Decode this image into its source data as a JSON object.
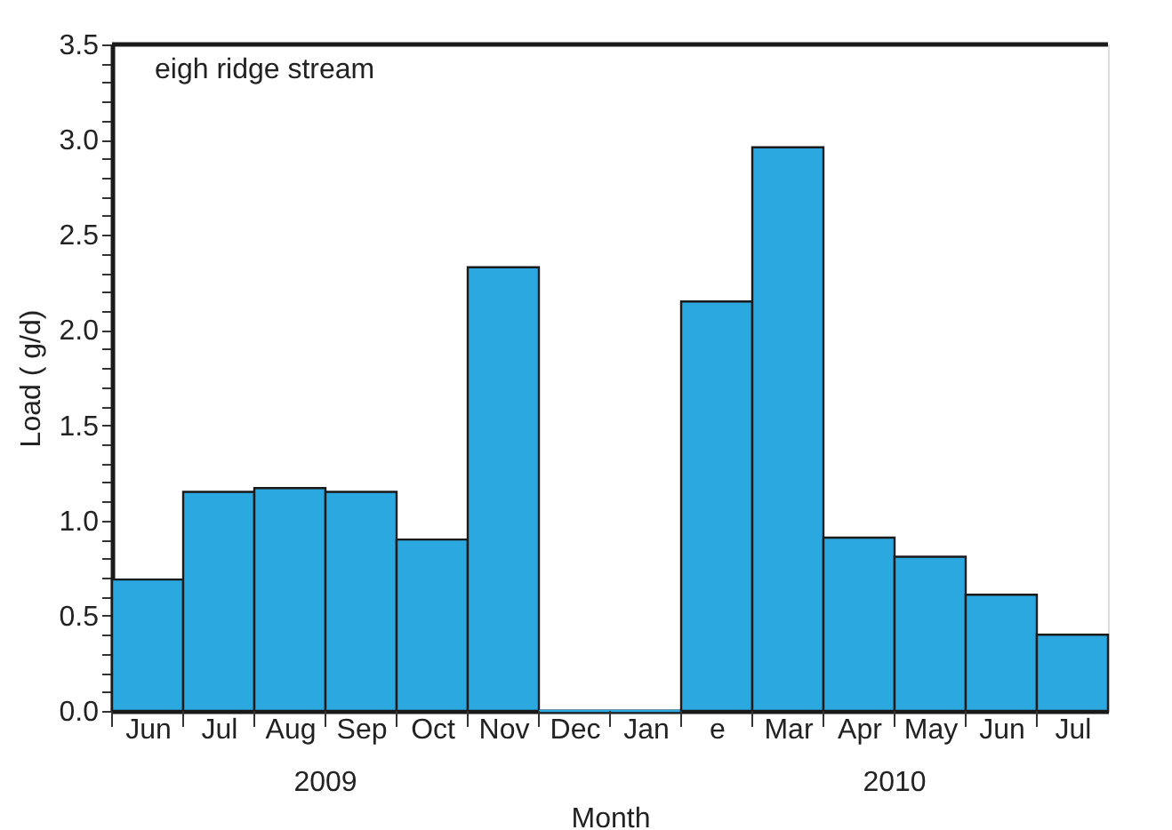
{
  "chart_data": {
    "type": "bar",
    "title": "eigh  ridge stream",
    "xlabel": "Month",
    "ylabel": "Load (  g/d)",
    "categories": [
      "Jun",
      "Jul",
      "Aug",
      "Sep",
      "Oct",
      "Nov",
      "Dec",
      "Jan",
      "e",
      "Mar",
      "Apr",
      "May",
      "Jun",
      "Jul"
    ],
    "values": [
      0.69,
      1.15,
      1.17,
      1.15,
      0.9,
      2.33,
      0,
      0,
      2.15,
      2.96,
      0.91,
      0.81,
      0.61,
      0.4
    ],
    "color": "#2ca8e0",
    "ylim": [
      0,
      3.5
    ],
    "yticks": [
      {
        "value": 0.0,
        "label": "0.0"
      },
      {
        "value": 0.1,
        "label": null
      },
      {
        "value": 0.2,
        "label": null
      },
      {
        "value": 0.3,
        "label": null
      },
      {
        "value": 0.4,
        "label": null
      },
      {
        "value": 0.5,
        "label": "0.5"
      },
      {
        "value": 0.6,
        "label": null
      },
      {
        "value": 0.7,
        "label": null
      },
      {
        "value": 0.8,
        "label": null
      },
      {
        "value": 0.9,
        "label": null
      },
      {
        "value": 1.0,
        "label": "1.0"
      },
      {
        "value": 1.1,
        "label": null
      },
      {
        "value": 1.2,
        "label": null
      },
      {
        "value": 1.3,
        "label": null
      },
      {
        "value": 1.4,
        "label": null
      },
      {
        "value": 1.5,
        "label": "1.5"
      },
      {
        "value": 1.6,
        "label": null
      },
      {
        "value": 1.7,
        "label": null
      },
      {
        "value": 1.8,
        "label": null
      },
      {
        "value": 1.9,
        "label": null
      },
      {
        "value": 2.0,
        "label": "2.0"
      },
      {
        "value": 2.1,
        "label": null
      },
      {
        "value": 2.2,
        "label": null
      },
      {
        "value": 2.3,
        "label": null
      },
      {
        "value": 2.4,
        "label": null
      },
      {
        "value": 2.5,
        "label": "2.5"
      },
      {
        "value": 2.6,
        "label": null
      },
      {
        "value": 2.7,
        "label": null
      },
      {
        "value": 2.8,
        "label": null
      },
      {
        "value": 2.9,
        "label": null
      },
      {
        "value": 3.0,
        "label": "3.0"
      },
      {
        "value": 3.1,
        "label": null
      },
      {
        "value": 3.2,
        "label": null
      },
      {
        "value": 3.3,
        "label": null
      },
      {
        "value": 3.4,
        "label": null
      },
      {
        "value": 3.5,
        "label": "3.5"
      }
    ],
    "annotations": [
      "2009",
      "2010"
    ],
    "grid": false
  }
}
